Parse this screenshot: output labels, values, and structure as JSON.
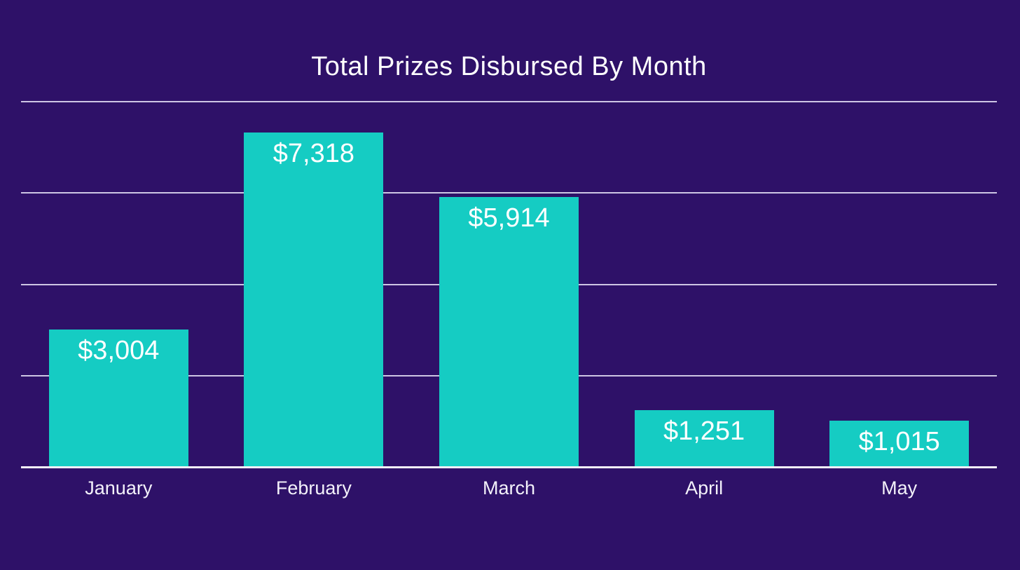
{
  "chart_data": {
    "type": "bar",
    "title": "Total Prizes Disbursed By Month",
    "categories": [
      "January",
      "February",
      "March",
      "April",
      "May"
    ],
    "values": [
      3004,
      7318,
      5914,
      1251,
      1015
    ],
    "value_labels": [
      "$3,004",
      "$7,318",
      "$5,914",
      "$1,251",
      "$1,015"
    ],
    "xlabel": "",
    "ylabel": "",
    "ylim": [
      0,
      8000
    ],
    "gridline_step": 2000,
    "grid": true,
    "y_tick_labels_visible": false,
    "legend": "none",
    "colors": {
      "background": "#2e1168",
      "bar": "#15ccc3",
      "title_text": "#ffffff",
      "value_label_text": "#ffffff",
      "x_label_text": "#f3f1fa",
      "gridline": "#cdc6e4",
      "axis_line": "#f2eff8"
    }
  }
}
